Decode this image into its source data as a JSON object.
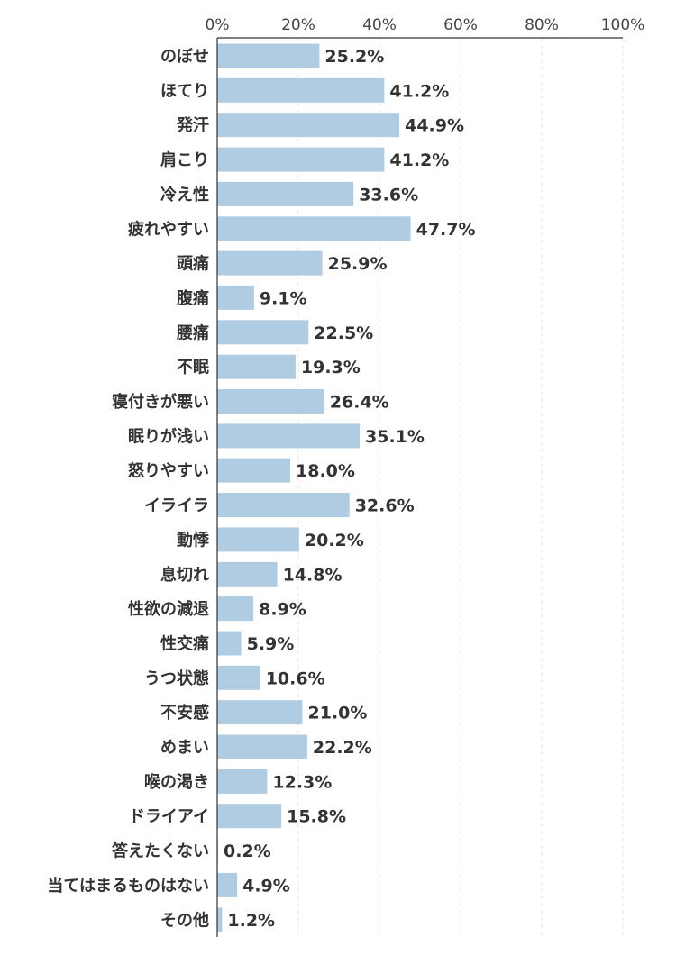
{
  "chart_data": {
    "type": "bar",
    "orientation": "horizontal",
    "title": "",
    "xlabel": "",
    "ylabel": "",
    "xlim": [
      0,
      100
    ],
    "x_ticks": [
      0,
      20,
      40,
      60,
      80,
      100
    ],
    "x_tick_labels": [
      "0%",
      "20%",
      "40%",
      "60%",
      "80%",
      "100%"
    ],
    "grid": true,
    "bar_color": "#b0cce2",
    "categories": [
      "のぼせ",
      "ほてり",
      "発汗",
      "肩こり",
      "冷え性",
      "疲れやすい",
      "頭痛",
      "腹痛",
      "腰痛",
      "不眠",
      "寝付きが悪い",
      "眠りが浅い",
      "怒りやすい",
      "イライラ",
      "動悸",
      "息切れ",
      "性欲の減退",
      "性交痛",
      "うつ状態",
      "不安感",
      "めまい",
      "喉の渇き",
      "ドライアイ",
      "答えたくない",
      "当てはまるものはない",
      "その他"
    ],
    "values": [
      25.2,
      41.2,
      44.9,
      41.2,
      33.6,
      47.7,
      25.9,
      9.1,
      22.5,
      19.3,
      26.4,
      35.1,
      18.0,
      32.6,
      20.2,
      14.8,
      8.9,
      5.9,
      10.6,
      21.0,
      22.2,
      12.3,
      15.8,
      0.2,
      4.9,
      1.2
    ],
    "value_labels": [
      "25.2%",
      "41.2%",
      "44.9%",
      "41.2%",
      "33.6%",
      "47.7%",
      "25.9%",
      "9.1%",
      "22.5%",
      "19.3%",
      "26.4%",
      "35.1%",
      "18.0%",
      "32.6%",
      "20.2%",
      "14.8%",
      "8.9%",
      "5.9%",
      "10.6%",
      "21.0%",
      "22.2%",
      "12.3%",
      "15.8%",
      "0.2%",
      "4.9%",
      "1.2%"
    ]
  }
}
